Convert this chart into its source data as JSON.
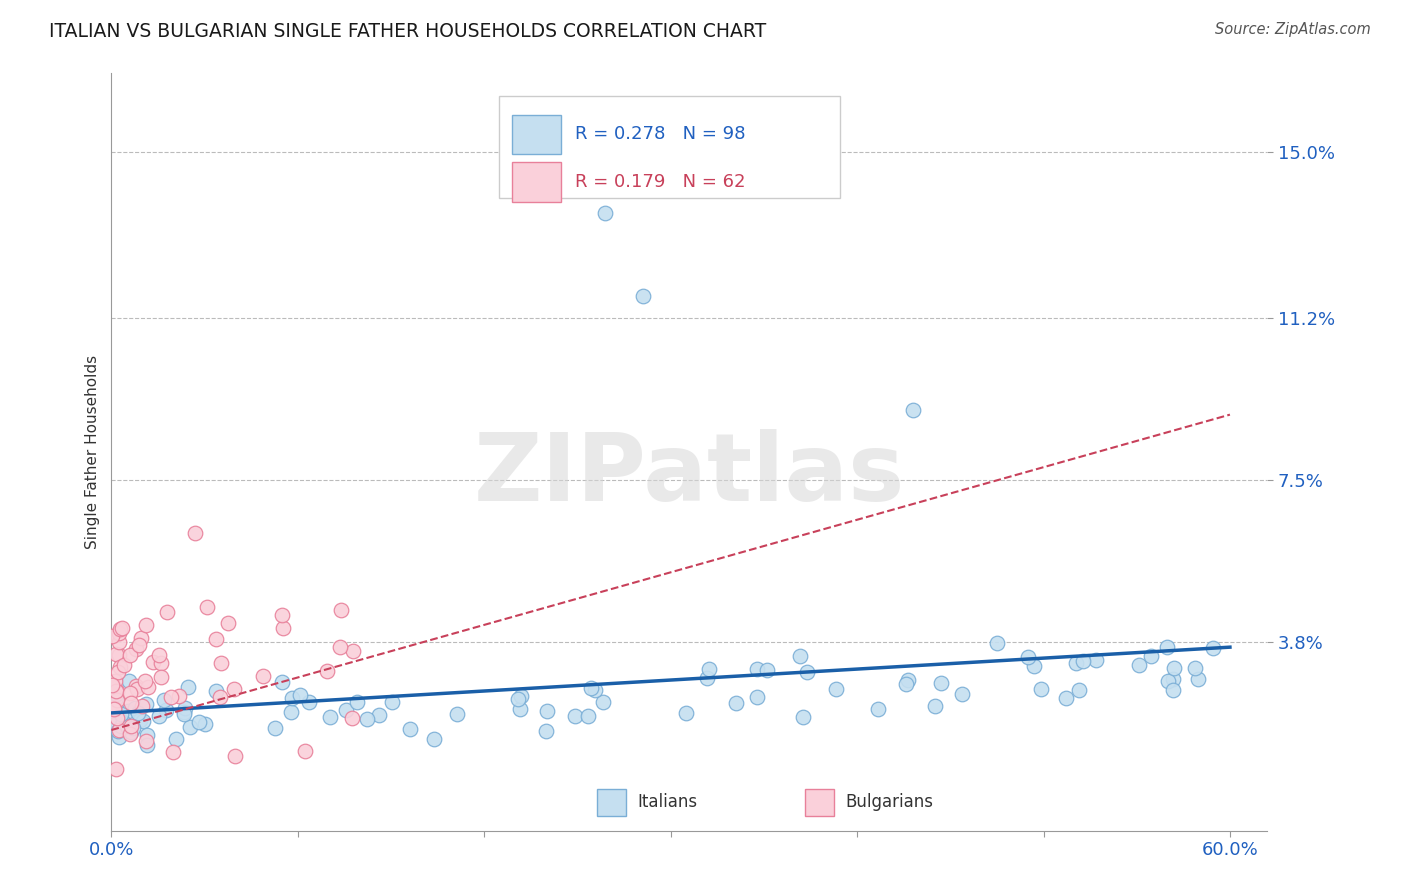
{
  "title": "ITALIAN VS BULGARIAN SINGLE FATHER HOUSEHOLDS CORRELATION CHART",
  "source": "Source: ZipAtlas.com",
  "ylabel": "Single Father Households",
  "xlim": [
    0.0,
    0.62
  ],
  "ylim": [
    -0.005,
    0.168
  ],
  "ytick_positions": [
    0.038,
    0.075,
    0.112,
    0.15
  ],
  "yticklabels": [
    "3.8%",
    "7.5%",
    "11.2%",
    "15.0%"
  ],
  "grid_yticks": [
    0.038,
    0.075,
    0.112,
    0.15
  ],
  "italian_edge_color": "#7aaed6",
  "italian_face_color": "#c5dff0",
  "bulgarian_edge_color": "#e8809a",
  "bulgarian_face_color": "#fad0da",
  "italian_line_color": "#1a5fa8",
  "bulgarian_line_color": "#c8405a",
  "R_italian": 0.278,
  "N_italian": 98,
  "R_bulgarian": 0.179,
  "N_bulgarian": 62,
  "watermark": "ZIPatlas",
  "background_color": "#ffffff",
  "legend_label_italian": "Italians",
  "legend_label_bulgarian": "Bulgarians",
  "tick_color": "#2060c0",
  "title_color": "#1a1a1a",
  "source_color": "#555555"
}
